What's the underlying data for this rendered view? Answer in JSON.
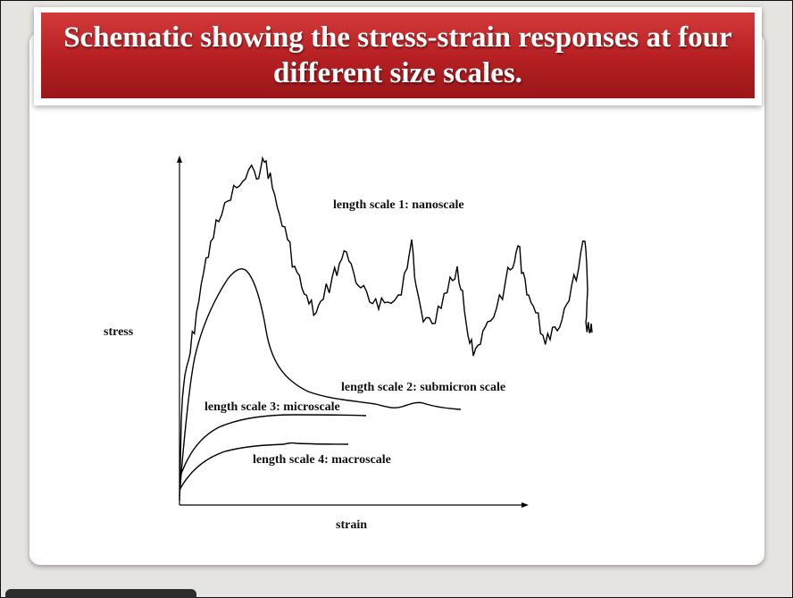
{
  "slide": {
    "title": "Schematic showing the stress-strain responses at four different size scales."
  },
  "diagram": {
    "y_axis_label": "stress",
    "x_axis_label": "strain",
    "curve_labels": [
      "length scale 1: nanoscale",
      "length scale 2: submicron scale",
      "length scale 3: microscale",
      "length scale 4: macroscale"
    ]
  }
}
